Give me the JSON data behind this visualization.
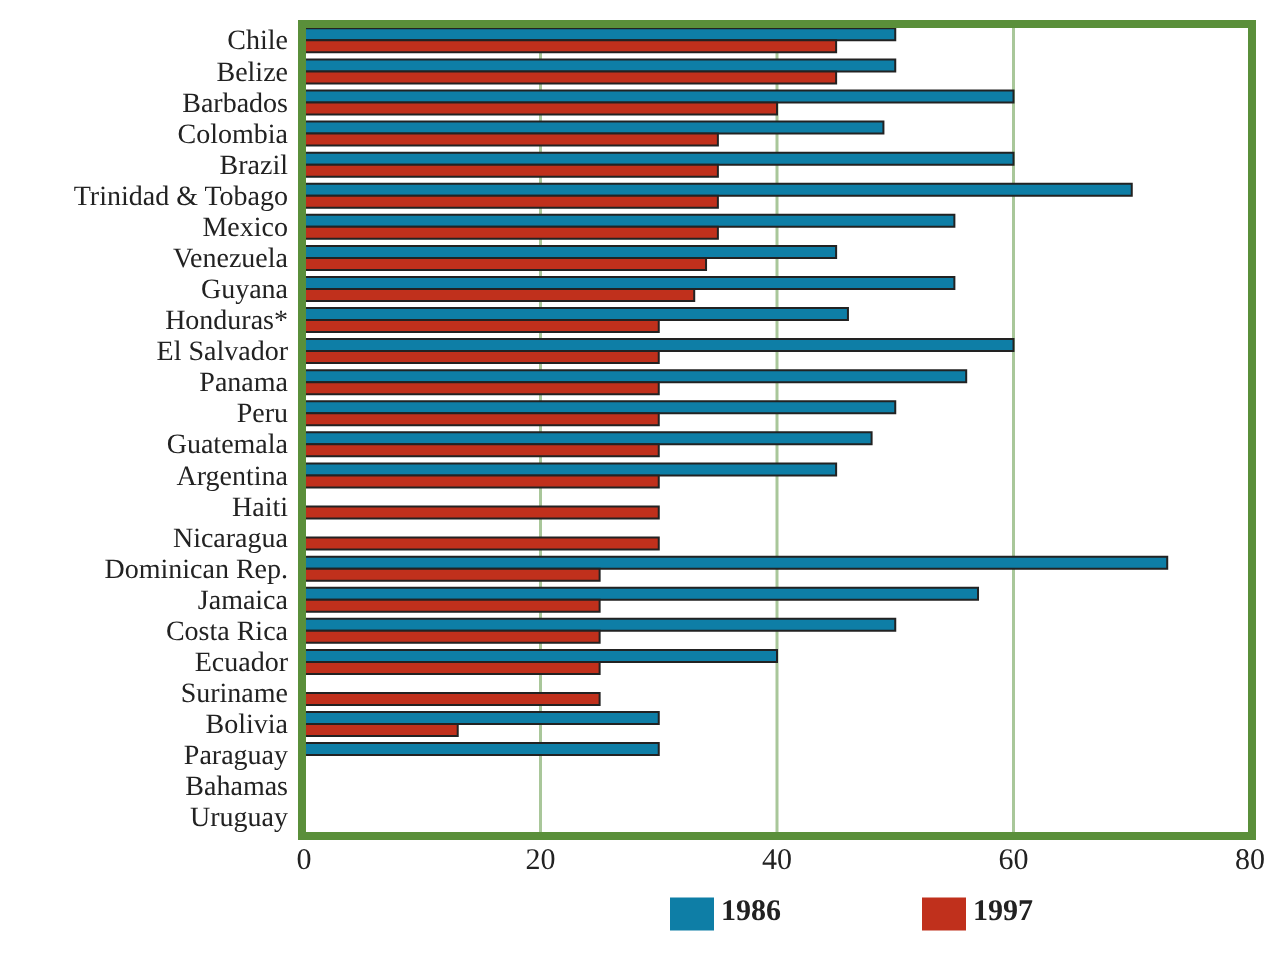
{
  "chart_data": {
    "type": "bar",
    "orientation": "horizontal",
    "categories": [
      "Chile",
      "Belize",
      "Barbados",
      "Colombia",
      "Brazil",
      "Trinidad & Tobago",
      "Mexico",
      "Venezuela",
      "Guyana",
      "Honduras*",
      "El Salvador",
      "Panama",
      "Peru",
      "Guatemala",
      "Argentina",
      "Haiti",
      "Nicaragua",
      "Dominican Rep.",
      "Jamaica",
      "Costa Rica",
      "Ecuador",
      "Suriname",
      "Bolivia",
      "Paraguay",
      "Bahamas",
      "Uruguay"
    ],
    "series": [
      {
        "name": "1986",
        "color": "#0e7ea6",
        "values": [
          50,
          50,
          60,
          49,
          60,
          70,
          55,
          45,
          55,
          46,
          60,
          56,
          50,
          48,
          45,
          null,
          null,
          73,
          57,
          50,
          40,
          null,
          30,
          30,
          0,
          0
        ]
      },
      {
        "name": "1997",
        "color": "#c0301c",
        "values": [
          45,
          45,
          40,
          35,
          35,
          35,
          35,
          34,
          33,
          30,
          30,
          30,
          30,
          30,
          30,
          30,
          30,
          25,
          25,
          25,
          25,
          25,
          13,
          null,
          0,
          0
        ]
      }
    ],
    "xlim": [
      0,
      80
    ],
    "xticks": [
      0,
      20,
      40,
      60,
      80
    ],
    "grid": "x",
    "legend": "bottom"
  }
}
